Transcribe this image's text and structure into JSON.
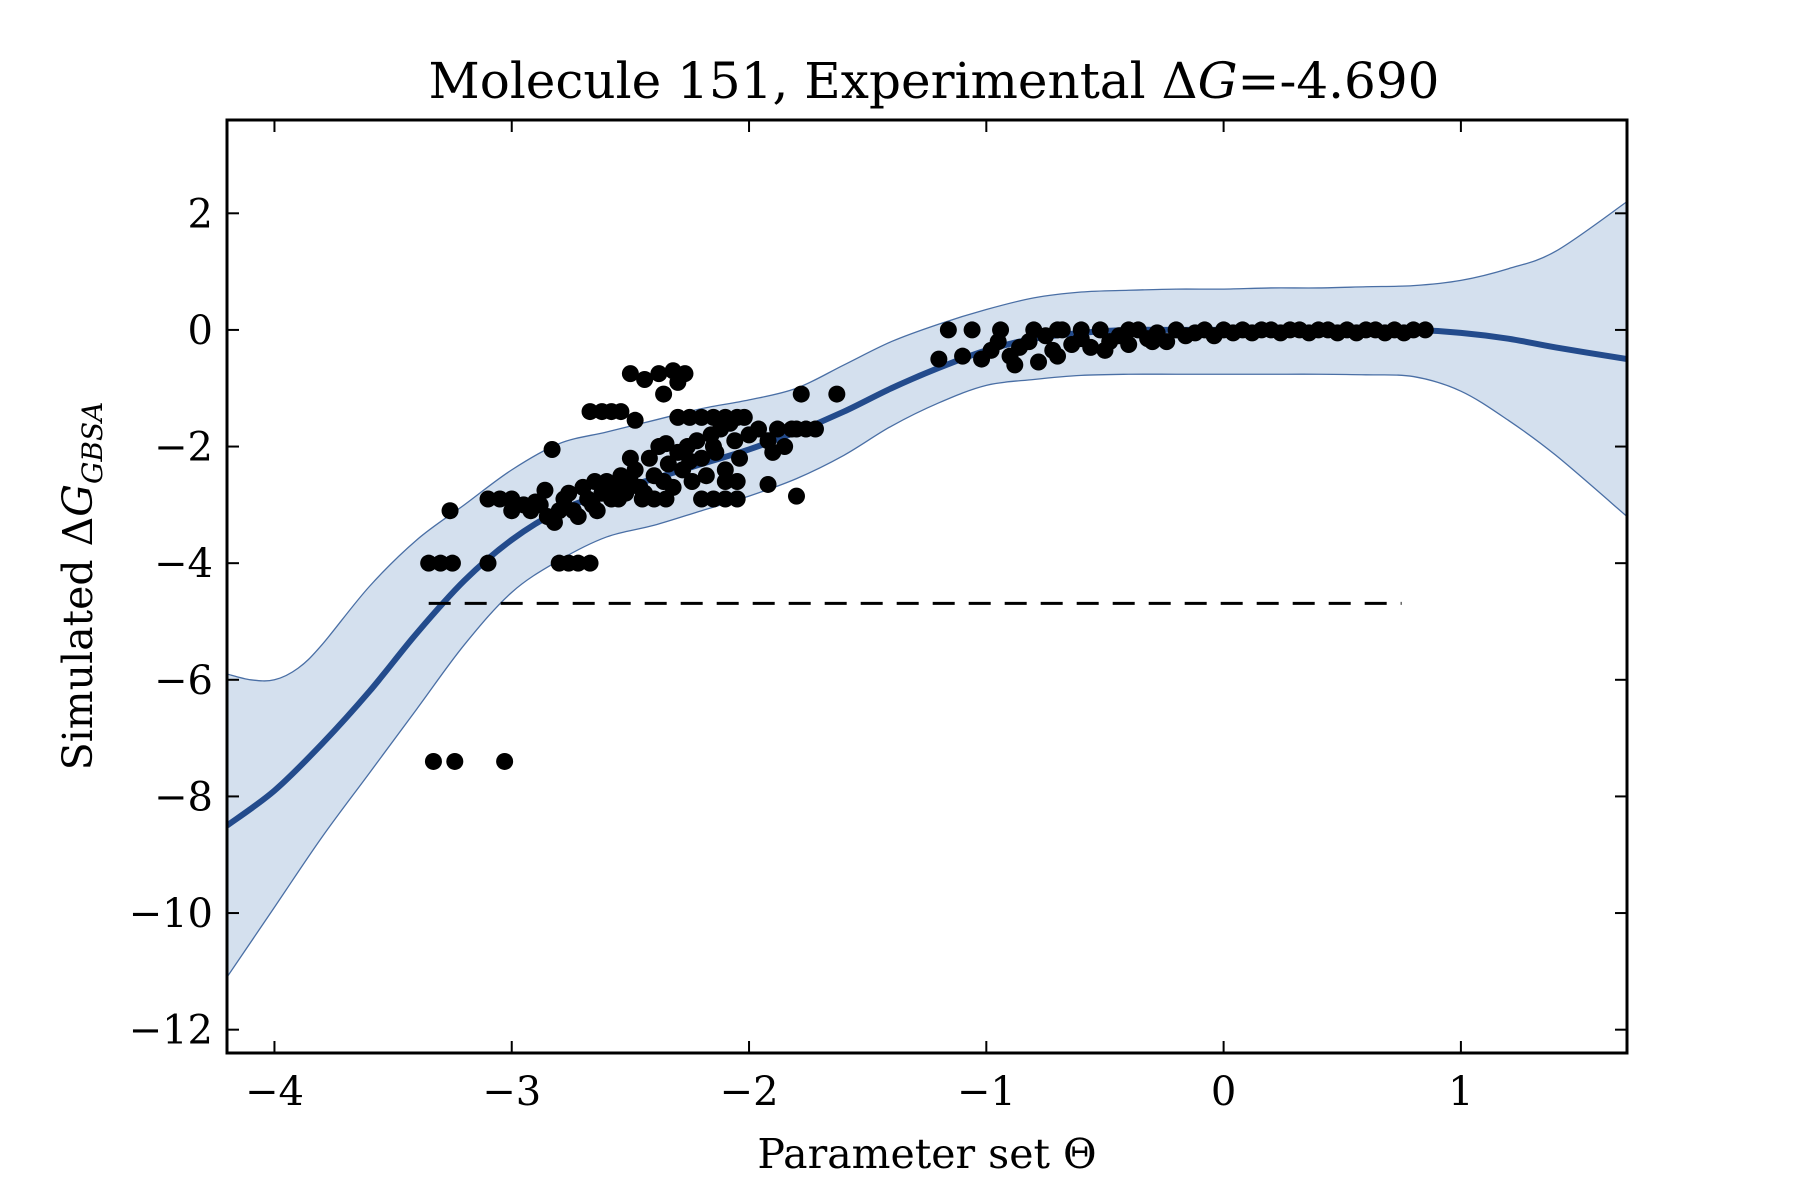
{
  "chart_data": {
    "type": "scatter",
    "title": "Molecule 151, Experimental ΔG=-4.690",
    "title_parts": {
      "prefix": "Molecule 151, Experimental Δ",
      "g": "G",
      "suffix": "=-4.690"
    },
    "xlabel": "Parameter set Θ",
    "ylabel_parts": {
      "prefix": "Simulated Δ",
      "g": "G",
      "sub": "GBSA"
    },
    "xlim": [
      -4.2,
      1.7
    ],
    "ylim": [
      -12.4,
      3.6
    ],
    "x_ticks": [
      -4,
      -3,
      -2,
      -1,
      0,
      1
    ],
    "x_tick_labels": [
      "−4",
      "−3",
      "−2",
      "−1",
      "0",
      "1"
    ],
    "y_ticks": [
      2,
      0,
      -2,
      -4,
      -6,
      -8,
      -10,
      -12
    ],
    "y_tick_labels": [
      "2",
      "0",
      "−2",
      "−4",
      "−6",
      "−8",
      "−10",
      "−12"
    ],
    "grid": false,
    "experimental_value": -4.69,
    "experimental_line_x": [
      -3.35,
      0.75
    ],
    "colors": {
      "mean_line": "#234b8c",
      "band_fill": "#d4e0ee",
      "band_edge": "#4a6fa5",
      "points": "#000000",
      "exp_line": "#000000"
    },
    "mean_curve": {
      "x": [
        -4.2,
        -4.0,
        -3.8,
        -3.6,
        -3.4,
        -3.2,
        -3.0,
        -2.8,
        -2.6,
        -2.4,
        -2.2,
        -2.0,
        -1.8,
        -1.6,
        -1.4,
        -1.2,
        -1.0,
        -0.8,
        -0.6,
        -0.4,
        -0.2,
        0.0,
        0.2,
        0.4,
        0.6,
        0.8,
        1.0,
        1.2,
        1.4,
        1.7
      ],
      "y": [
        -8.5,
        -7.9,
        -7.1,
        -6.2,
        -5.2,
        -4.3,
        -3.6,
        -3.1,
        -2.8,
        -2.55,
        -2.3,
        -2.05,
        -1.75,
        -1.4,
        -1.0,
        -0.65,
        -0.35,
        -0.15,
        -0.05,
        0.0,
        0.0,
        0.0,
        0.0,
        0.0,
        0.0,
        0.0,
        -0.05,
        -0.15,
        -0.3,
        -0.5
      ]
    },
    "band_upper": {
      "x": [
        -4.2,
        -4.1,
        -4.0,
        -3.9,
        -3.8,
        -3.6,
        -3.4,
        -3.2,
        -3.0,
        -2.8,
        -2.6,
        -2.4,
        -2.2,
        -2.0,
        -1.8,
        -1.6,
        -1.4,
        -1.2,
        -1.0,
        -0.8,
        -0.6,
        -0.4,
        -0.2,
        0.0,
        0.2,
        0.4,
        0.6,
        0.8,
        1.0,
        1.2,
        1.4,
        1.7
      ],
      "y": [
        -5.9,
        -6.0,
        -6.0,
        -5.8,
        -5.4,
        -4.4,
        -3.6,
        -3.0,
        -2.4,
        -1.95,
        -1.75,
        -1.55,
        -1.35,
        -1.2,
        -1.0,
        -0.6,
        -0.2,
        0.1,
        0.35,
        0.55,
        0.65,
        0.68,
        0.7,
        0.7,
        0.72,
        0.72,
        0.74,
        0.76,
        0.85,
        1.05,
        1.35,
        2.2
      ]
    },
    "band_lower": {
      "x": [
        -4.2,
        -4.0,
        -3.8,
        -3.6,
        -3.4,
        -3.2,
        -3.0,
        -2.8,
        -2.6,
        -2.4,
        -2.2,
        -2.0,
        -1.8,
        -1.6,
        -1.4,
        -1.2,
        -1.0,
        -0.8,
        -0.6,
        -0.4,
        -0.2,
        0.0,
        0.2,
        0.4,
        0.6,
        0.8,
        1.0,
        1.2,
        1.4,
        1.7
      ],
      "y": [
        -11.1,
        -9.9,
        -8.7,
        -7.6,
        -6.5,
        -5.4,
        -4.5,
        -3.95,
        -3.55,
        -3.35,
        -3.1,
        -2.85,
        -2.55,
        -2.15,
        -1.65,
        -1.25,
        -0.95,
        -0.85,
        -0.78,
        -0.76,
        -0.76,
        -0.76,
        -0.76,
        -0.76,
        -0.77,
        -0.8,
        -1.05,
        -1.55,
        -2.15,
        -3.2
      ]
    },
    "points": [
      [
        -3.35,
        -4.0
      ],
      [
        -3.3,
        -4.0
      ],
      [
        -3.25,
        -4.0
      ],
      [
        -3.33,
        -7.4
      ],
      [
        -3.24,
        -7.4
      ],
      [
        -3.03,
        -7.4
      ],
      [
        -3.26,
        -3.1
      ],
      [
        -3.1,
        -4.0
      ],
      [
        -3.1,
        -2.9
      ],
      [
        -3.05,
        -2.9
      ],
      [
        -3.0,
        -2.9
      ],
      [
        -2.95,
        -3.0
      ],
      [
        -3.0,
        -3.1
      ],
      [
        -2.92,
        -3.1
      ],
      [
        -2.88,
        -3.0
      ],
      [
        -2.85,
        -3.2
      ],
      [
        -2.82,
        -3.3
      ],
      [
        -2.8,
        -3.1
      ],
      [
        -2.78,
        -2.9
      ],
      [
        -2.76,
        -2.8
      ],
      [
        -2.74,
        -3.1
      ],
      [
        -2.72,
        -3.2
      ],
      [
        -2.7,
        -2.7
      ],
      [
        -2.68,
        -2.9
      ],
      [
        -2.66,
        -3.0
      ],
      [
        -2.64,
        -3.1
      ],
      [
        -2.62,
        -2.8
      ],
      [
        -2.6,
        -2.6
      ],
      [
        -2.58,
        -2.9
      ],
      [
        -2.56,
        -2.7
      ],
      [
        -2.54,
        -2.5
      ],
      [
        -2.52,
        -2.8
      ],
      [
        -2.5,
        -2.6
      ],
      [
        -2.48,
        -2.4
      ],
      [
        -2.46,
        -2.7
      ],
      [
        -2.44,
        -2.8
      ],
      [
        -2.42,
        -2.2
      ],
      [
        -2.4,
        -2.5
      ],
      [
        -2.38,
        -2.0
      ],
      [
        -2.36,
        -2.6
      ],
      [
        -2.34,
        -2.3
      ],
      [
        -2.32,
        -2.7
      ],
      [
        -2.3,
        -2.1
      ],
      [
        -2.28,
        -2.4
      ],
      [
        -2.26,
        -2.0
      ],
      [
        -2.24,
        -2.6
      ],
      [
        -2.22,
        -1.9
      ],
      [
        -2.2,
        -2.2
      ],
      [
        -2.18,
        -2.5
      ],
      [
        -2.16,
        -1.8
      ],
      [
        -2.14,
        -2.1
      ],
      [
        -2.12,
        -1.7
      ],
      [
        -2.1,
        -2.4
      ],
      [
        -2.08,
        -1.6
      ],
      [
        -2.06,
        -1.9
      ],
      [
        -2.04,
        -2.2
      ],
      [
        -2.02,
        -1.5
      ],
      [
        -2.0,
        -1.8
      ],
      [
        -1.96,
        -1.7
      ],
      [
        -1.92,
        -1.9
      ],
      [
        -1.88,
        -1.7
      ],
      [
        -1.85,
        -2.0
      ],
      [
        -1.82,
        -1.7
      ],
      [
        -1.8,
        -1.7
      ],
      [
        -1.76,
        -1.7
      ],
      [
        -1.72,
        -1.7
      ],
      [
        -2.83,
        -2.05
      ],
      [
        -2.8,
        -4.0
      ],
      [
        -2.76,
        -4.0
      ],
      [
        -2.72,
        -4.0
      ],
      [
        -2.67,
        -4.0
      ],
      [
        -2.67,
        -1.4
      ],
      [
        -2.62,
        -1.4
      ],
      [
        -2.58,
        -1.4
      ],
      [
        -2.54,
        -1.4
      ],
      [
        -2.5,
        -0.75
      ],
      [
        -2.48,
        -1.55
      ],
      [
        -2.44,
        -0.85
      ],
      [
        -2.38,
        -0.75
      ],
      [
        -2.36,
        -1.1
      ],
      [
        -2.32,
        -0.7
      ],
      [
        -2.3,
        -0.9
      ],
      [
        -2.27,
        -0.75
      ],
      [
        -2.3,
        -1.5
      ],
      [
        -2.25,
        -1.5
      ],
      [
        -2.2,
        -1.5
      ],
      [
        -2.15,
        -1.5
      ],
      [
        -2.1,
        -1.5
      ],
      [
        -2.05,
        -1.5
      ],
      [
        -2.2,
        -2.9
      ],
      [
        -2.15,
        -2.9
      ],
      [
        -2.1,
        -2.9
      ],
      [
        -2.05,
        -2.9
      ],
      [
        -2.1,
        -2.6
      ],
      [
        -2.05,
        -2.6
      ],
      [
        -1.92,
        -2.65
      ],
      [
        -1.8,
        -2.85
      ],
      [
        -1.78,
        -1.1
      ],
      [
        -1.63,
        -1.1
      ],
      [
        -1.9,
        -2.1
      ],
      [
        -2.45,
        -2.9
      ],
      [
        -2.4,
        -2.9
      ],
      [
        -2.35,
        -2.9
      ],
      [
        -2.55,
        -2.9
      ],
      [
        -2.65,
        -2.6
      ],
      [
        -2.9,
        -2.95
      ],
      [
        -2.86,
        -2.75
      ],
      [
        -2.5,
        -2.2
      ],
      [
        -2.35,
        -1.95
      ],
      [
        -2.25,
        -2.25
      ],
      [
        -2.15,
        -2.0
      ],
      [
        -1.2,
        -0.5
      ],
      [
        -1.16,
        0.0
      ],
      [
        -1.1,
        -0.45
      ],
      [
        -1.06,
        0.0
      ],
      [
        -1.02,
        -0.5
      ],
      [
        -0.98,
        -0.35
      ],
      [
        -0.94,
        0.0
      ],
      [
        -0.9,
        -0.45
      ],
      [
        -0.86,
        -0.3
      ],
      [
        -0.82,
        -0.2
      ],
      [
        -0.78,
        -0.55
      ],
      [
        -0.75,
        -0.1
      ],
      [
        -0.72,
        -0.35
      ],
      [
        -0.68,
        0.0
      ],
      [
        -0.64,
        -0.25
      ],
      [
        -0.6,
        -0.15
      ],
      [
        -0.56,
        -0.3
      ],
      [
        -0.52,
        0.0
      ],
      [
        -0.48,
        -0.2
      ],
      [
        -0.44,
        -0.1
      ],
      [
        -0.4,
        -0.25
      ],
      [
        -0.36,
        0.0
      ],
      [
        -0.32,
        -0.15
      ],
      [
        -0.28,
        -0.05
      ],
      [
        -0.24,
        -0.2
      ],
      [
        -0.2,
        0.0
      ],
      [
        -0.16,
        -0.1
      ],
      [
        -0.12,
        -0.05
      ],
      [
        -0.08,
        0.0
      ],
      [
        -0.04,
        -0.1
      ],
      [
        0.0,
        0.0
      ],
      [
        0.04,
        -0.05
      ],
      [
        0.08,
        0.0
      ],
      [
        0.12,
        -0.05
      ],
      [
        0.16,
        0.0
      ],
      [
        0.2,
        0.0
      ],
      [
        0.24,
        -0.05
      ],
      [
        0.28,
        0.0
      ],
      [
        0.32,
        0.0
      ],
      [
        0.36,
        -0.05
      ],
      [
        0.4,
        0.0
      ],
      [
        0.44,
        0.0
      ],
      [
        0.48,
        -0.05
      ],
      [
        0.52,
        0.0
      ],
      [
        0.56,
        -0.05
      ],
      [
        0.6,
        0.0
      ],
      [
        0.64,
        0.0
      ],
      [
        0.68,
        -0.05
      ],
      [
        0.72,
        0.0
      ],
      [
        0.76,
        -0.05
      ],
      [
        0.8,
        0.0
      ],
      [
        0.85,
        0.0
      ],
      [
        -0.8,
        0.0
      ],
      [
        -0.7,
        0.0
      ],
      [
        -0.6,
        0.0
      ],
      [
        -0.5,
        -0.35
      ],
      [
        -0.4,
        0.0
      ],
      [
        -0.3,
        -0.2
      ],
      [
        -0.95,
        -0.2
      ],
      [
        -0.88,
        -0.6
      ],
      [
        -0.7,
        -0.45
      ]
    ]
  }
}
